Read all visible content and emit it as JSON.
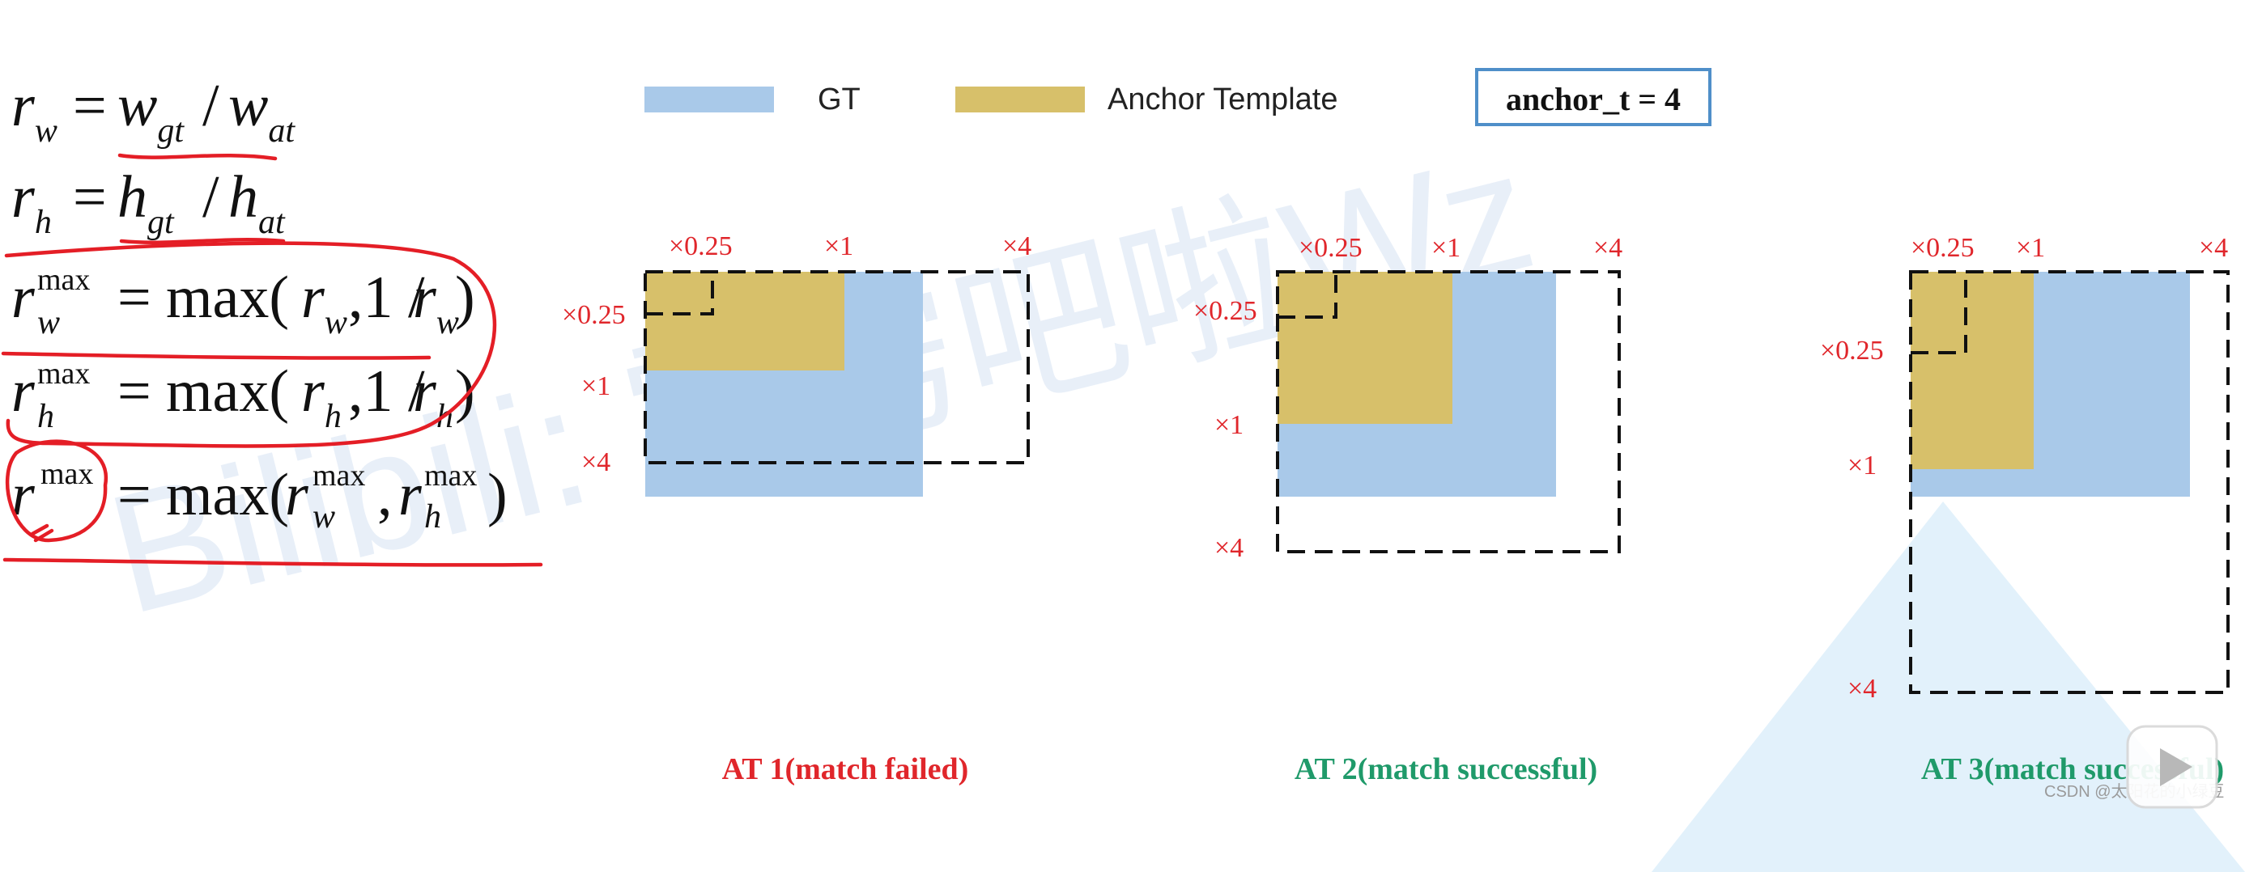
{
  "formulas": {
    "rw": {
      "lhs": "r",
      "lhs_sub": "w",
      "eq": "=",
      "a": "w",
      "a_sub": "gt",
      "slash": "/",
      "b": "w",
      "b_sub": "at"
    },
    "rh": {
      "lhs": "r",
      "lhs_sub": "h",
      "eq": "=",
      "a": "h",
      "a_sub": "gt",
      "slash": "/",
      "b": "h",
      "b_sub": "at"
    },
    "rw_max": {
      "lhs": "r",
      "lhs_sub": "w",
      "lhs_sup": "max",
      "eq": "=",
      "fn": "max(",
      "arg1": "r",
      "arg1_sub": "w",
      "mid": ",1 / ",
      "arg2": "r",
      "arg2_sub": "w",
      "close": ")"
    },
    "rh_max": {
      "lhs": "r",
      "lhs_sub": "h",
      "lhs_sup": "max",
      "eq": "=",
      "fn": "max(",
      "arg1": "r",
      "arg1_sub": "h",
      "mid": ",1 / ",
      "arg2": "r",
      "arg2_sub": "h",
      "close": ")"
    },
    "r_max": {
      "lhs": "r",
      "lhs_sup": "max",
      "eq": "=",
      "fn": "max(",
      "arg1": "r",
      "arg1_sub": "w",
      "arg1_sup": "max",
      "mid": ", ",
      "arg2": "r",
      "arg2_sub": "h",
      "arg2_sup": "max",
      "close": ")"
    }
  },
  "legend": {
    "gt_label": "GT",
    "anchor_label": "Anchor Template",
    "anchor_t_label": "anchor_t = 4"
  },
  "colors": {
    "gt": "#a9c9e9",
    "anchor": "#d7c06a",
    "failed": "#e0262b",
    "success": "#1f9a6a",
    "scale_label": "#e0262b",
    "annotation": "#e41e26",
    "legend_border": "#4f8fc9"
  },
  "scale_labels": {
    "quarter": "×0.25",
    "one": "×1",
    "four": "×4"
  },
  "panels": [
    {
      "caption": "AT 1(match failed)",
      "status": "failed"
    },
    {
      "caption": "AT 2(match successful)",
      "status": "success"
    },
    {
      "caption": "AT 3(match successful)",
      "status": "success"
    }
  ],
  "watermark": {
    "text": "Bilibili: 霹雳吧啦Wz",
    "csdn": "CSDN @太阳花的小绿豆"
  }
}
